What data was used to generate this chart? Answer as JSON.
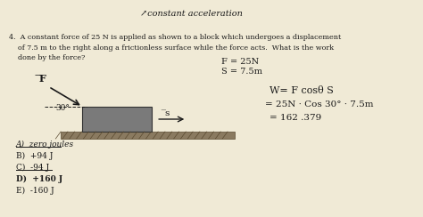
{
  "bg_color": "#d8c9a8",
  "paper_color": "#f0ead6",
  "title_text": "↗constant acceleration",
  "question_text": "4.  A constant force of 25 N is applied as shown to a block which undergoes a displacement\n    of 7.5 m to the right along a frictionless surface while the force acts.  What is the work\n    done by the force?",
  "given_f": "F = 25N",
  "given_s": "S = 7.5m",
  "work_eq1": "W= F cosθ S",
  "work_eq2": "= 25N · Cos 30° · 7.5m",
  "work_eq3": "= 162 .379",
  "choices": [
    "A)  zero joules",
    "B)  +94 J",
    "C)  -94 J",
    "D)  +160 J",
    "E)  -160 J"
  ],
  "angle_label": "30°",
  "s_label": "̅s",
  "force_label": "̅F",
  "block_color": "#7a7a7a",
  "ground_color": "#8a7a60",
  "arrow_color": "#1a1a1a",
  "text_color": "#1a1a1a",
  "scratch_color": "#555555"
}
